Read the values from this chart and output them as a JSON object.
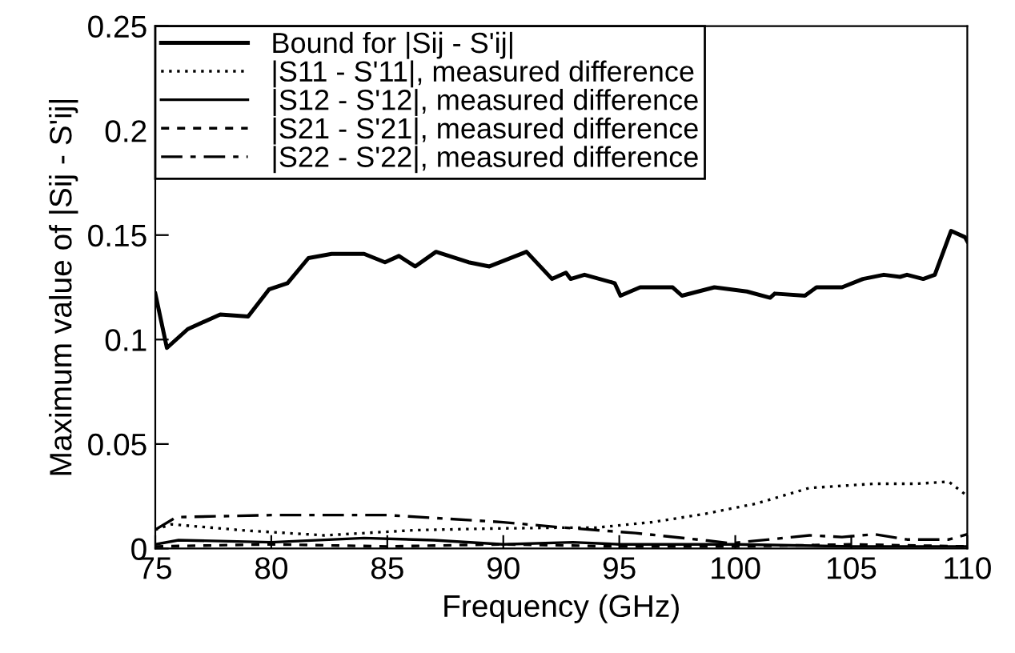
{
  "chart_data": {
    "type": "line",
    "xlabel": "Frequency (GHz)",
    "ylabel": "Maximum value of |Sij - S'ij|",
    "xlim": [
      75,
      110
    ],
    "ylim": [
      0,
      0.25
    ],
    "xticks": [
      75,
      80,
      85,
      90,
      95,
      100,
      105,
      110
    ],
    "yticks": [
      0,
      0.05,
      0.1,
      0.15,
      0.2,
      0.25
    ],
    "legend": "top left",
    "grid": false,
    "series": [
      {
        "name": "Bound for |Sij - S'ij|",
        "color": "#000000",
        "line_style": "solid",
        "x": [
          75,
          75.5,
          76.4,
          77.8,
          79,
          79.9,
          80.7,
          81.6,
          82.6,
          84,
          84.9,
          85.5,
          86.2,
          87.1,
          88.5,
          89.4,
          91,
          92.1,
          92.7,
          92.9,
          93.5,
          94.8,
          95.05,
          95.9,
          97.3,
          97.7,
          99.1,
          100.5,
          101.5,
          101.7,
          103,
          103.5,
          104.6,
          105.5,
          106.4,
          107.1,
          107.4,
          108.1,
          108.6,
          109.3,
          109.9,
          110
        ],
        "values": [
          0.122,
          0.096,
          0.105,
          0.112,
          0.111,
          0.124,
          0.127,
          0.139,
          0.141,
          0.141,
          0.137,
          0.14,
          0.135,
          0.142,
          0.137,
          0.135,
          0.142,
          0.129,
          0.132,
          0.129,
          0.131,
          0.127,
          0.121,
          0.125,
          0.125,
          0.121,
          0.125,
          0.123,
          0.12,
          0.122,
          0.121,
          0.125,
          0.125,
          0.129,
          0.131,
          0.13,
          0.131,
          0.129,
          0.131,
          0.152,
          0.149,
          0.147
        ]
      },
      {
        "name": "|S11 - S'11|, measured difference",
        "color": "#000000",
        "line_style": "dotted",
        "x": [
          75,
          75.7,
          78.9,
          82.3,
          86.2,
          89.7,
          92.6,
          94,
          96.4,
          98.6,
          100.9,
          103.2,
          106,
          107.8,
          109.2,
          109.9
        ],
        "values": [
          0.009,
          0.0116,
          0.0086,
          0.0063,
          0.0088,
          0.0096,
          0.01,
          0.01,
          0.0126,
          0.0164,
          0.0215,
          0.029,
          0.031,
          0.031,
          0.032,
          0.026
        ]
      },
      {
        "name": "|S12 - S'12|, measured difference",
        "color": "#000000",
        "line_style": "solid",
        "x": [
          75,
          76,
          80,
          84,
          87,
          90,
          93,
          95,
          100,
          105,
          110
        ],
        "values": [
          0.002,
          0.004,
          0.003,
          0.005,
          0.004,
          0.002,
          0.003,
          0.002,
          0.002,
          0.001,
          0.001
        ]
      },
      {
        "name": "|S21 - S'21|, measured difference",
        "color": "#000000",
        "line_style": "dashed",
        "x": [
          75,
          80,
          85,
          90,
          95,
          100,
          105,
          110
        ],
        "values": [
          0.001,
          0.002,
          0.001,
          0.002,
          0.001,
          0.001,
          0.002,
          0.001
        ]
      },
      {
        "name": "|S22 - S'22|, measured difference",
        "color": "#000000",
        "line_style": "dashdot",
        "x": [
          75,
          75.9,
          80,
          85,
          90,
          92.6,
          95.7,
          98.8,
          99.8,
          103.2,
          104.6,
          106,
          107.4,
          109.2,
          110
        ],
        "values": [
          0.009,
          0.015,
          0.016,
          0.016,
          0.0126,
          0.01,
          0.0074,
          0.0038,
          0.0025,
          0.0063,
          0.0055,
          0.0068,
          0.0043,
          0.0043,
          0.0068
        ]
      }
    ]
  }
}
